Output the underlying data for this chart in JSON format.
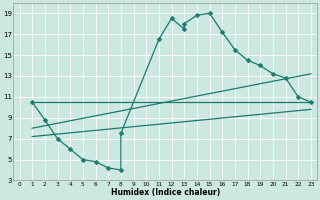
{
  "xlabel": "Humidex (Indice chaleur)",
  "bg_color": "#cce8e0",
  "grid_color": "#ffffff",
  "line_color": "#1a7a6e",
  "xlim": [
    -0.5,
    23.5
  ],
  "ylim": [
    3,
    20
  ],
  "xticks": [
    0,
    1,
    2,
    3,
    4,
    5,
    6,
    7,
    8,
    9,
    10,
    11,
    12,
    13,
    14,
    15,
    16,
    17,
    18,
    19,
    20,
    21,
    22,
    23
  ],
  "yticks": [
    3,
    5,
    7,
    9,
    11,
    13,
    15,
    17,
    19
  ],
  "main_line": {
    "x": [
      1,
      2,
      3,
      4,
      5,
      6,
      7,
      8,
      8,
      11,
      12,
      13,
      13,
      14,
      15,
      16,
      17,
      18,
      19,
      20,
      21,
      22,
      23
    ],
    "y": [
      10.5,
      8.8,
      7.0,
      6.0,
      5.0,
      4.8,
      4.2,
      4.0,
      7.5,
      16.5,
      18.5,
      17.5,
      18.0,
      18.8,
      19.0,
      17.2,
      15.5,
      14.5,
      14.0,
      13.2,
      12.8,
      11.0,
      10.5
    ]
  },
  "trend_lines": [
    {
      "x": [
        1,
        23
      ],
      "y": [
        10.5,
        10.5
      ]
    },
    {
      "x": [
        1,
        23
      ],
      "y": [
        8.0,
        13.2
      ]
    },
    {
      "x": [
        1,
        23
      ],
      "y": [
        7.2,
        9.8
      ]
    }
  ],
  "markersize": 2.5,
  "linewidth": 0.9
}
